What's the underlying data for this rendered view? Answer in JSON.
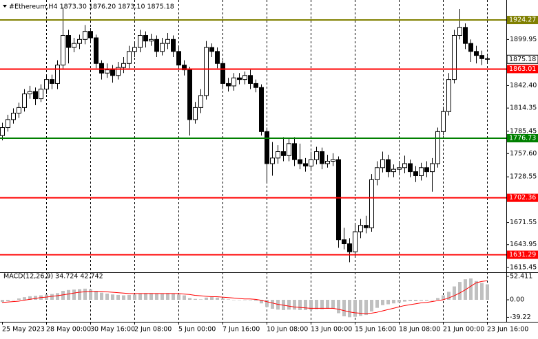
{
  "chart_data": [
    {
      "type": "candlestick",
      "title": "#Ethereum,H4 1873.30 1876.20 1873.10 1875.18",
      "categories": [
        "25 May 2023",
        null,
        null,
        null,
        null,
        null,
        null,
        null,
        "28 May 00:00",
        null,
        null,
        null,
        null,
        null,
        null,
        null,
        "30 May 16:00",
        null,
        null,
        null,
        null,
        null,
        null,
        null,
        "2 Jun 08:00",
        null,
        null,
        null,
        null,
        null,
        null,
        null,
        "5 Jun 00:00",
        null,
        null,
        null,
        null,
        null,
        null,
        null,
        "7 Jun 16:00",
        null,
        null,
        null,
        null,
        null,
        null,
        null,
        "10 Jun 08:00",
        null,
        null,
        null,
        null,
        null,
        null,
        null,
        "13 Jun 00:00",
        null,
        null,
        null,
        null,
        null,
        null,
        null,
        "15 Jun 16:00",
        null,
        null,
        null,
        null,
        null,
        null,
        null,
        "18 Jun 08:00",
        null,
        null,
        null,
        null,
        null,
        null,
        null,
        "21 Jun 00:00",
        null,
        null,
        null,
        null,
        null,
        null,
        null,
        "23 Jun 16:00"
      ],
      "open": [
        1780,
        1790,
        1800,
        1808,
        1815,
        1832,
        1835,
        1826,
        1838,
        1850,
        1845,
        1868,
        1905,
        1890,
        1895,
        1900,
        1910,
        1902,
        1870,
        1858,
        1862,
        1855,
        1865,
        1870,
        1885,
        1890,
        1905,
        1898,
        1900,
        1885,
        1895,
        1900,
        1885,
        1868,
        1862,
        1800,
        1815,
        1830,
        1890,
        1885,
        1870,
        1845,
        1842,
        1852,
        1850,
        1855,
        1845,
        1840,
        1785,
        1745,
        1752,
        1760,
        1755,
        1770,
        1750,
        1745,
        1742,
        1750,
        1760,
        1745,
        1748,
        1750,
        1650,
        1645,
        1635,
        1660,
        1668,
        1665,
        1725,
        1740,
        1750,
        1735,
        1738,
        1740,
        1745,
        1735,
        1730,
        1740,
        1735,
        1745,
        1785,
        1810,
        1850,
        1905,
        1915,
        1895,
        1885,
        1880,
        1876
      ],
      "high": [
        1796,
        1806,
        1814,
        1821,
        1838,
        1842,
        1840,
        1844,
        1856,
        1856,
        1874,
        1940,
        1912,
        1902,
        1906,
        1918,
        1914,
        1906,
        1874,
        1870,
        1868,
        1872,
        1878,
        1892,
        1896,
        1912,
        1910,
        1907,
        1905,
        1902,
        1908,
        1905,
        1890,
        1874,
        1866,
        1822,
        1838,
        1898,
        1895,
        1890,
        1874,
        1852,
        1858,
        1858,
        1860,
        1862,
        1850,
        1844,
        1790,
        1772,
        1768,
        1778,
        1776,
        1778,
        1770,
        1752,
        1760,
        1766,
        1765,
        1756,
        1758,
        1754,
        1665,
        1652,
        1670,
        1676,
        1680,
        1732,
        1748,
        1760,
        1756,
        1744,
        1748,
        1755,
        1750,
        1742,
        1746,
        1748,
        1752,
        1790,
        1816,
        1858,
        1912,
        1938,
        1920,
        1900,
        1892,
        1886,
        1879
      ],
      "low": [
        1774,
        1785,
        1795,
        1802,
        1810,
        1826,
        1818,
        1822,
        1832,
        1838,
        1838,
        1862,
        1870,
        1884,
        1888,
        1894,
        1896,
        1864,
        1850,
        1852,
        1846,
        1850,
        1858,
        1864,
        1878,
        1884,
        1890,
        1892,
        1878,
        1880,
        1888,
        1878,
        1862,
        1855,
        1780,
        1795,
        1808,
        1825,
        1878,
        1864,
        1838,
        1835,
        1836,
        1844,
        1844,
        1838,
        1834,
        1780,
        1722,
        1730,
        1745,
        1748,
        1748,
        1742,
        1738,
        1735,
        1736,
        1744,
        1738,
        1740,
        1742,
        1640,
        1638,
        1622,
        1630,
        1652,
        1658,
        1660,
        1718,
        1734,
        1728,
        1728,
        1732,
        1733,
        1728,
        1722,
        1724,
        1728,
        1710,
        1740,
        1780,
        1805,
        1845,
        1900,
        1888,
        1872,
        1870,
        1868,
        1870
      ],
      "close": [
        1790,
        1800,
        1808,
        1815,
        1832,
        1835,
        1826,
        1838,
        1850,
        1845,
        1868,
        1905,
        1890,
        1895,
        1900,
        1910,
        1902,
        1870,
        1858,
        1862,
        1855,
        1865,
        1870,
        1885,
        1890,
        1905,
        1898,
        1900,
        1885,
        1895,
        1900,
        1885,
        1868,
        1862,
        1800,
        1815,
        1830,
        1890,
        1885,
        1870,
        1845,
        1842,
        1852,
        1850,
        1855,
        1845,
        1840,
        1785,
        1745,
        1752,
        1760,
        1755,
        1770,
        1750,
        1745,
        1742,
        1750,
        1760,
        1745,
        1748,
        1750,
        1650,
        1645,
        1635,
        1660,
        1668,
        1665,
        1725,
        1740,
        1750,
        1735,
        1738,
        1740,
        1745,
        1735,
        1730,
        1740,
        1735,
        1745,
        1785,
        1810,
        1850,
        1905,
        1915,
        1895,
        1885,
        1880,
        1876,
        1875.18
      ],
      "ylim": [
        1609.4,
        1949.2
      ],
      "yticks": [
        1899.95,
        {
          "value": 1842.4,
          "label": "1842.40"
        },
        1814.35,
        1785.45,
        {
          "value": 1757.6,
          "label": "1757.60"
        },
        1728.55,
        1671.55,
        1643.95,
        1615.45
      ],
      "levels": [
        {
          "value": 1924.27,
          "color": "#808000"
        },
        {
          "value": 1863.01,
          "color": "#ff0000"
        },
        {
          "value": 1776.73,
          "color": "#008000"
        },
        {
          "value": 1702.36,
          "color": "#ff0000"
        },
        {
          "value": 1631.29,
          "color": "#ff0000"
        }
      ]
    },
    {
      "type": "macd",
      "title": "MACD(12,26,9) 34.724 42.742",
      "series": [
        {
          "style": "histogram",
          "color": "#c0c0c0",
          "values": [
            -5,
            -3,
            0,
            3,
            6,
            8,
            9,
            10,
            12,
            13,
            15,
            20,
            22,
            23,
            24,
            25,
            24,
            20,
            16,
            14,
            12,
            11,
            10,
            11,
            12,
            14,
            15,
            15,
            14,
            14,
            15,
            14,
            12,
            10,
            4,
            2,
            1,
            5,
            6,
            5,
            3,
            1,
            0,
            0,
            0,
            -1,
            -2,
            -8,
            -16,
            -20,
            -22,
            -23,
            -22,
            -22,
            -23,
            -23,
            -22,
            -21,
            -21,
            -20,
            -20,
            -30,
            -37,
            -39,
            -38,
            -36,
            -34,
            -26,
            -18,
            -12,
            -10,
            -8,
            -6,
            -4,
            -3,
            -3,
            -2,
            -2,
            -1,
            4,
            10,
            18,
            30,
            40,
            46,
            48,
            42,
            38,
            34.724
          ]
        },
        {
          "style": "line",
          "color": "#ff0000",
          "values": [
            -6,
            -5,
            -4,
            -3,
            -1,
            1,
            3,
            5,
            6,
            8,
            9,
            11,
            13,
            15,
            17,
            18,
            19,
            19,
            19,
            18,
            17,
            16,
            15,
            14,
            14,
            14,
            14,
            14,
            14,
            14,
            14,
            14,
            14,
            13,
            12,
            10,
            9,
            8,
            7,
            7,
            6,
            5,
            4,
            3,
            2,
            2,
            1,
            -1,
            -4,
            -7,
            -10,
            -12,
            -14,
            -16,
            -17,
            -18,
            -19,
            -19,
            -19,
            -19,
            -19,
            -21,
            -24,
            -27,
            -29,
            -30,
            -31,
            -30,
            -28,
            -25,
            -22,
            -19,
            -16,
            -13,
            -11,
            -9,
            -7,
            -6,
            -4,
            -2,
            0,
            4,
            9,
            15,
            22,
            30,
            38,
            41,
            42.742
          ]
        }
      ],
      "ylim": [
        -49.3,
        58.6
      ],
      "yticks": [
        52.411,
        {
          "value": 0,
          "label": "0.00"
        },
        -39.22
      ]
    }
  ]
}
